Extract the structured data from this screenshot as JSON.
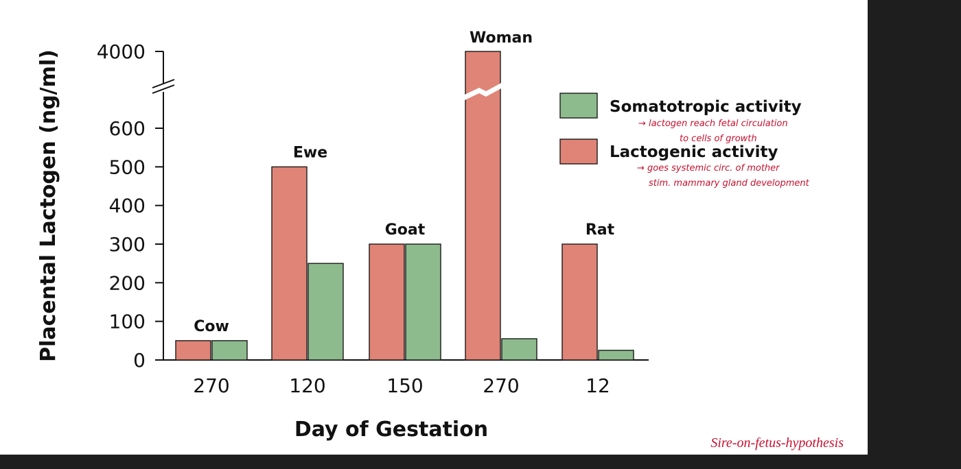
{
  "chart_data": {
    "type": "bar",
    "ylabel": "Placental Lactogen (ng/ml)",
    "xlabel": "Day of Gestation",
    "y_ticks": [
      0,
      100,
      200,
      300,
      400,
      500,
      600,
      4000
    ],
    "ylim": [
      0,
      4000
    ],
    "axis_break": true,
    "categories": [
      "270",
      "120",
      "150",
      "270",
      "12"
    ],
    "groups": [
      "Cow",
      "Ewe",
      "Goat",
      "Woman",
      "Rat"
    ],
    "series": [
      {
        "name": "Lactogenic activity",
        "color": "#df8476",
        "values": [
          50,
          500,
          300,
          4000,
          300
        ]
      },
      {
        "name": "Somatotropic activity",
        "color": "#8ebb8e",
        "values": [
          50,
          250,
          300,
          55,
          25
        ]
      }
    ],
    "legend_position": "right",
    "legend": [
      "Somatotropic activity",
      "Lactogenic activity"
    ]
  },
  "annotations": {
    "note1_line1": "→ lactogen reach fetal circulation",
    "note1_line2": "to cells of growth",
    "note2_line1": "→ goes systemic circ. of mother",
    "note2_line2": "stim. mammary gland development"
  },
  "credit": "Sire-on-fetus-hypothesis"
}
